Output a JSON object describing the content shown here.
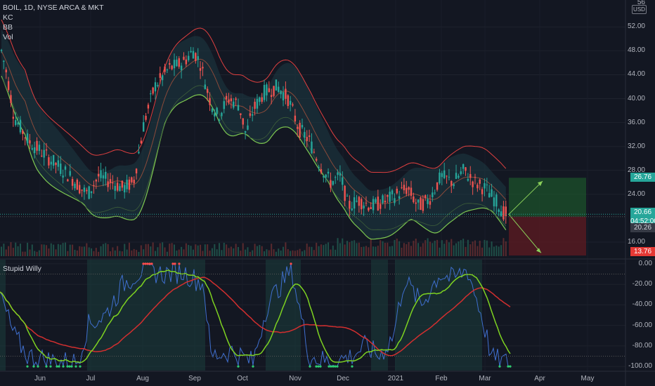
{
  "header": {
    "symbol_line": "BOIL, 1D, NYSE ARCA & MKT",
    "indicators": [
      "KC",
      "BB",
      "Vol"
    ],
    "currency": "USD"
  },
  "oscillator": {
    "title": "Stupid Willy"
  },
  "colors": {
    "background": "#131722",
    "up": "#26a69a",
    "down": "#ef5350",
    "kc_line": "#e04040",
    "bb_line": "#7ec850",
    "osc_blue": "#3f6fcf",
    "osc_red": "#d32f2f",
    "osc_green": "#7ed321",
    "profit_zone": "#1b4d2b",
    "loss_zone": "#5a1a22"
  },
  "price_axis": {
    "labels": [
      "56",
      "52.00",
      "48.00",
      "44.00",
      "40.00",
      "36.00",
      "32.00",
      "28.00",
      "24.00",
      "16.00"
    ],
    "min": 13.3,
    "max": 56.5
  },
  "price_tags": {
    "target": {
      "value": "26.76",
      "color": "#26a69a"
    },
    "current": {
      "value": "20.66",
      "countdown": "04:52:00",
      "color": "#26a69a"
    },
    "entry": {
      "value": "20.26",
      "color": "#363a45"
    },
    "stop": {
      "value": "13.76",
      "color": "#e53935"
    }
  },
  "osc_axis": {
    "labels": [
      "0.00",
      "-20.00",
      "-40.00",
      "-60.00",
      "-80.00",
      "-100.00"
    ],
    "min": -104,
    "max": 4
  },
  "time_axis": {
    "labels": [
      "Jun",
      "Jul",
      "Aug",
      "Sep",
      "Oct",
      "Nov",
      "Dec",
      "2021",
      "Feb",
      "Mar",
      "Apr",
      "May"
    ]
  },
  "chart_data": {
    "type": "candlestick",
    "series": [
      {
        "name": "BOIL",
        "values_close_approx": [
          49,
          40,
          35,
          32,
          28,
          27,
          24,
          28,
          27,
          25,
          30,
          40,
          44,
          46,
          49,
          45,
          38,
          36,
          40,
          42,
          43,
          38,
          34,
          33,
          30,
          28,
          26,
          22,
          21,
          23,
          22,
          25,
          24,
          22,
          24,
          28,
          27,
          26,
          23,
          20.66
        ]
      }
    ],
    "position_tool": {
      "entry": 20.26,
      "target": 26.76,
      "stop": 13.76
    }
  }
}
